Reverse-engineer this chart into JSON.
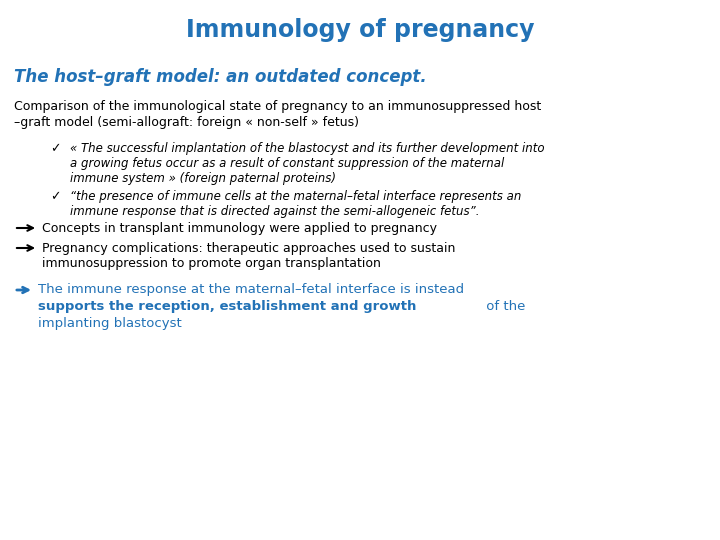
{
  "title": "Immunology of pregnancy",
  "title_color": "#2272B6",
  "title_fontsize": 17,
  "subtitle": "The host–graft model: an outdated concept.",
  "subtitle_color": "#2272B6",
  "subtitle_fontsize": 12,
  "body_color": "#000000",
  "body_fontsize": 9.0,
  "italic_fontsize": 8.5,
  "blue_color": "#2272B6",
  "background": "#ffffff",
  "line1": "Comparison of the immunological state of pregnancy to an immunosuppressed host",
  "line2": "–graft model (semi-allograft: foreign « non-self » fetus)",
  "bullet1_line1": "« The successful implantation of the blastocyst and its further development into",
  "bullet1_line2": "a growing fetus occur as a result of constant suppression of the maternal",
  "bullet1_line3": "immune system » (foreign paternal proteins)",
  "bullet2_line1": "“the presence of immune cells at the maternal–fetal interface represents an",
  "bullet2_line2": "immune response that is directed against the semi-allogeneic fetus”.",
  "arrow1": "Concepts in transplant immunology were applied to pregnancy",
  "arrow2_line1": "Pregnancy complications: therapeutic approaches used to sustain",
  "arrow2_line2": "immunosuppression to promote organ transplantation",
  "final_line1": "The immune response at the maternal–fetal interface is instead",
  "final_line2_bold": "supports the reception, establishment and growth",
  "final_line2_normal": " of the",
  "final_line3": "implanting blastocyst"
}
